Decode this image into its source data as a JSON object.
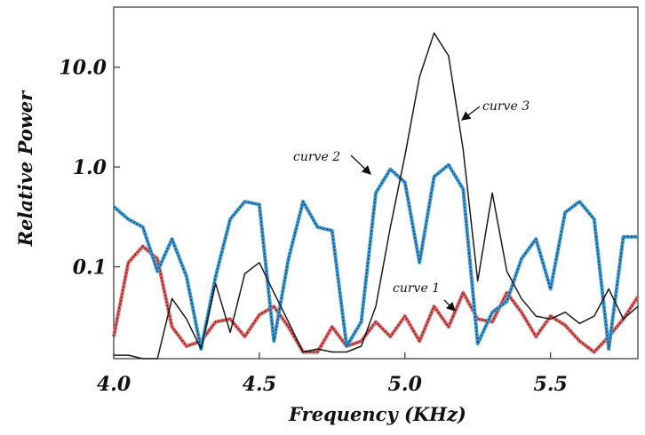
{
  "chart_data": {
    "type": "line",
    "title": "",
    "xlabel": "Frequency (KHz)",
    "ylabel": "Relative Power",
    "x_scale": "linear",
    "y_scale": "log",
    "xlim": [
      4.0,
      5.8
    ],
    "ylim": [
      0.012,
      40
    ],
    "x_ticks": [
      4.0,
      4.5,
      5.0,
      5.5
    ],
    "x_tick_labels": [
      "4.0",
      "4.5",
      "5.0",
      "5.5"
    ],
    "y_ticks": [
      0.1,
      1.0,
      10.0
    ],
    "y_tick_labels": [
      "0.1",
      "1.0",
      "10.0"
    ],
    "grid": false,
    "legend": "none",
    "annotations": [
      {
        "text": "curve 1",
        "series": "curve 1",
        "x": 5.22,
        "y": 0.035
      },
      {
        "text": "curve 2",
        "series": "curve 2",
        "x": 4.91,
        "y": 0.8
      },
      {
        "text": "curve 3",
        "series": "curve 3",
        "x": 5.2,
        "y": 3.5
      }
    ],
    "series": [
      {
        "name": "curve 1",
        "color": "#e06060",
        "x": [
          4.0,
          4.05,
          4.1,
          4.15,
          4.2,
          4.25,
          4.3,
          4.35,
          4.4,
          4.45,
          4.5,
          4.55,
          4.6,
          4.65,
          4.7,
          4.75,
          4.8,
          4.85,
          4.9,
          4.95,
          5.0,
          5.05,
          5.1,
          5.15,
          5.2,
          5.25,
          5.3,
          5.35,
          5.4,
          5.45,
          5.5,
          5.55,
          5.6,
          5.65,
          5.7,
          5.75,
          5.8
        ],
        "y": [
          0.02,
          0.11,
          0.16,
          0.12,
          0.025,
          0.016,
          0.018,
          0.028,
          0.03,
          0.02,
          0.033,
          0.04,
          0.025,
          0.014,
          0.014,
          0.025,
          0.016,
          0.018,
          0.028,
          0.02,
          0.032,
          0.018,
          0.04,
          0.025,
          0.055,
          0.03,
          0.028,
          0.055,
          0.035,
          0.02,
          0.032,
          0.026,
          0.018,
          0.014,
          0.02,
          0.03,
          0.05
        ]
      },
      {
        "name": "curve 2",
        "color": "#3a9bd8",
        "x": [
          4.0,
          4.05,
          4.1,
          4.15,
          4.2,
          4.25,
          4.3,
          4.35,
          4.4,
          4.45,
          4.5,
          4.55,
          4.6,
          4.65,
          4.7,
          4.75,
          4.8,
          4.85,
          4.9,
          4.95,
          5.0,
          5.05,
          5.1,
          5.15,
          5.2,
          5.25,
          5.3,
          5.35,
          5.4,
          5.45,
          5.5,
          5.55,
          5.6,
          5.65,
          5.7,
          5.75,
          5.8
        ],
        "y": [
          0.4,
          0.3,
          0.25,
          0.09,
          0.19,
          0.08,
          0.015,
          0.08,
          0.3,
          0.45,
          0.42,
          0.018,
          0.12,
          0.45,
          0.25,
          0.23,
          0.016,
          0.028,
          0.55,
          0.95,
          0.7,
          0.11,
          0.8,
          1.05,
          0.6,
          0.017,
          0.035,
          0.045,
          0.12,
          0.19,
          0.06,
          0.35,
          0.45,
          0.3,
          0.015,
          0.2,
          0.2
        ]
      },
      {
        "name": "curve 3",
        "color": "#1a1a1a",
        "x": [
          4.0,
          4.05,
          4.1,
          4.15,
          4.2,
          4.25,
          4.3,
          4.35,
          4.4,
          4.45,
          4.5,
          4.55,
          4.6,
          4.65,
          4.7,
          4.75,
          4.8,
          4.85,
          4.9,
          4.95,
          5.0,
          5.05,
          5.1,
          5.15,
          5.2,
          5.25,
          5.3,
          5.35,
          5.4,
          5.45,
          5.5,
          5.55,
          5.6,
          5.65,
          5.7,
          5.75,
          5.8
        ],
        "y": [
          0.013,
          0.013,
          0.012,
          0.012,
          0.048,
          0.03,
          0.015,
          0.068,
          0.022,
          0.085,
          0.11,
          0.055,
          0.028,
          0.014,
          0.015,
          0.014,
          0.014,
          0.016,
          0.04,
          0.25,
          1.3,
          8.0,
          22.0,
          13.0,
          1.5,
          0.072,
          0.55,
          0.09,
          0.048,
          0.032,
          0.03,
          0.035,
          0.027,
          0.032,
          0.06,
          0.03,
          0.04
        ]
      }
    ]
  }
}
